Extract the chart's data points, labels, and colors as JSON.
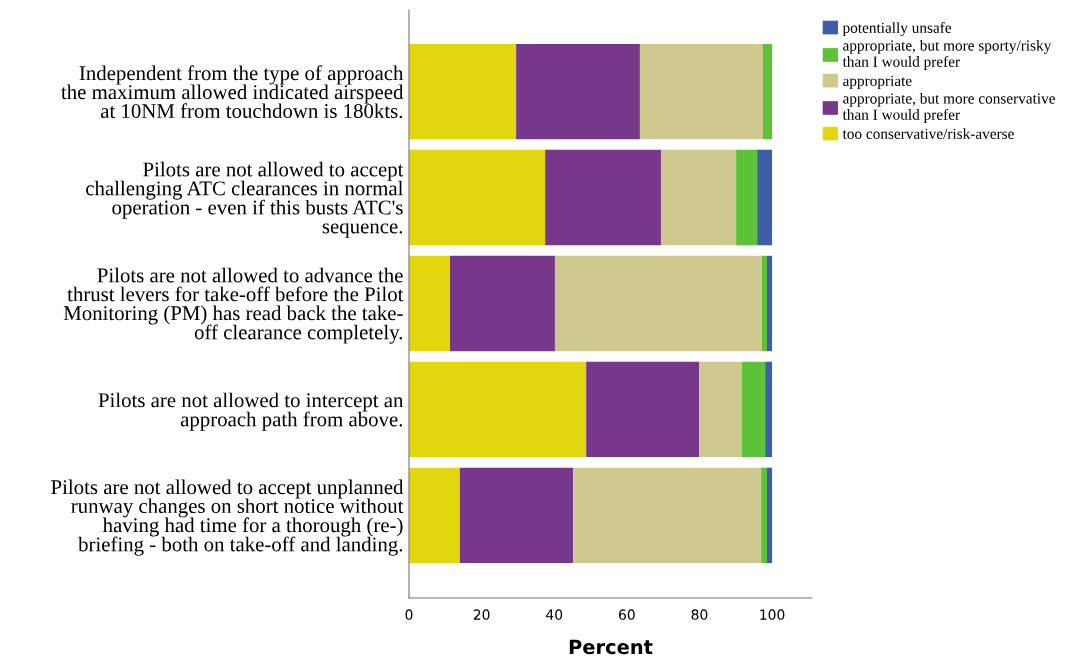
{
  "chart_data": {
    "type": "bar",
    "orientation": "horizontal",
    "stacked": true,
    "xlabel": "Percent",
    "categories": [
      "Independent from the type of approach\nthe maximum allowed indicated airspeed\nat 10NM from touchdown is 180kts.",
      "Pilots are not allowed to accept\nchallenging ATC clearances in normal\noperation - even if this busts ATC's\nsequence.",
      "Pilots are not allowed to advance the\nthrust levers for take-off before the Pilot\nMonitoring (PM) has read back the take-\noff clearance completely.",
      "Pilots are not allowed to intercept an\napproach path from above.",
      "Pilots are not allowed to accept unplanned\nrunway changes on short notice without\nhaving had time for a thorough (re-)\nbriefing - both on take-off and landing."
    ],
    "series": [
      {
        "name": "too conservative/risk-averse",
        "color": "#e2d70f",
        "values": [
          29.5,
          37.5,
          11.3,
          48.8,
          14.0
        ]
      },
      {
        "name": "appropriate, but more conservative\nthan I would prefer",
        "color": "#77378b",
        "values": [
          34.1,
          31.9,
          28.9,
          31.1,
          31.2
        ]
      },
      {
        "name": "appropriate",
        "color": "#d0c98f",
        "values": [
          33.9,
          20.7,
          57.0,
          11.8,
          51.8
        ]
      },
      {
        "name": "appropriate, but more sporty/risky\nthan I would prefer",
        "color": "#5cc238",
        "values": [
          2.5,
          5.8,
          1.4,
          6.4,
          1.6
        ]
      },
      {
        "name": "potentially unsafe",
        "color": "#3f5ca9",
        "values": [
          0,
          4.1,
          1.4,
          1.9,
          1.4
        ]
      }
    ],
    "xlim": [
      0,
      111
    ],
    "xticks": [
      0,
      20,
      40,
      60,
      80,
      100
    ],
    "grid": false,
    "legend": "top right"
  }
}
